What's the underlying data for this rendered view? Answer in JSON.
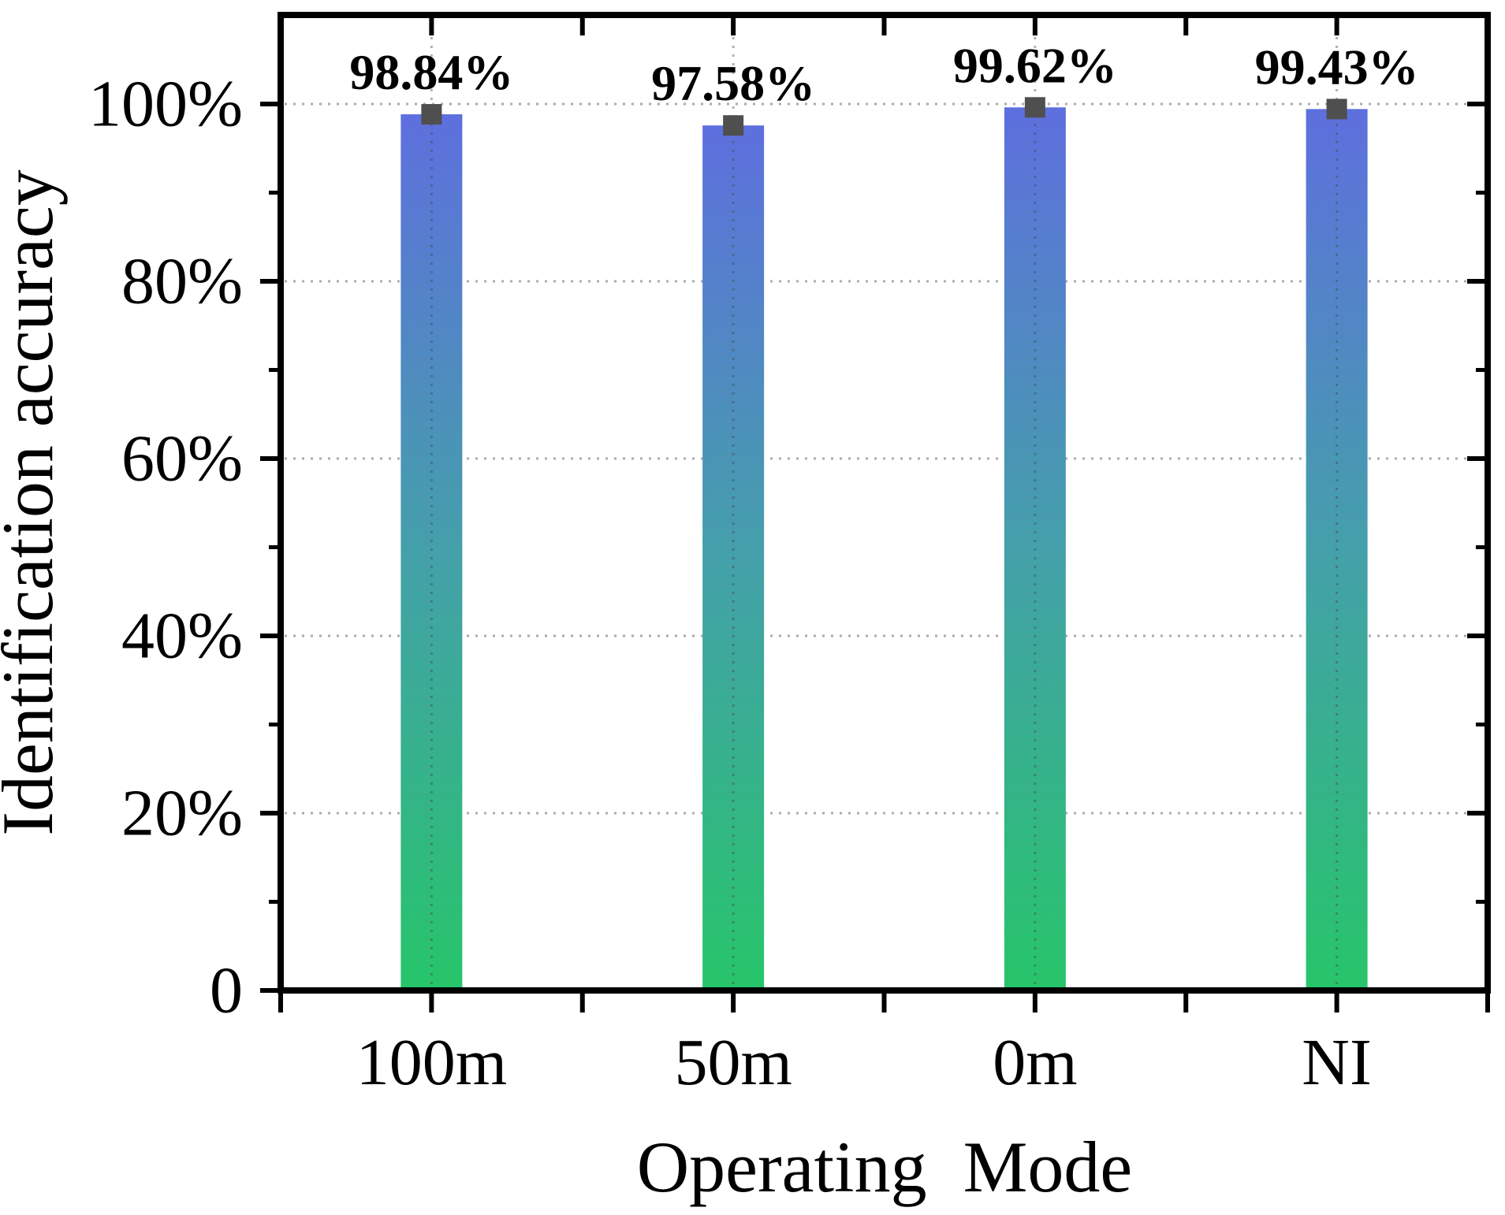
{
  "figure": {
    "background_color": "#ffffff"
  },
  "chart_data": {
    "type": "bar",
    "title": "",
    "xlabel": "Operating  Mode",
    "ylabel": "Identification accuracy",
    "categories": [
      "100m",
      "50m",
      "0m",
      "NI"
    ],
    "series": [
      {
        "name": "Identification accuracy",
        "values": [
          98.84,
          97.58,
          99.62,
          99.43
        ]
      }
    ],
    "value_labels": [
      "98.84%",
      "97.58%",
      "99.62%",
      "99.43%"
    ],
    "y_axis": {
      "ticks": [
        {
          "value": 0,
          "label": "0"
        },
        {
          "value": 20,
          "label": "20%"
        },
        {
          "value": 40,
          "label": "40%"
        },
        {
          "value": 60,
          "label": "60%"
        },
        {
          "value": 80,
          "label": "80%"
        },
        {
          "value": 100,
          "label": "100%"
        }
      ],
      "minor_tick_values": [
        10,
        30,
        50,
        70,
        90
      ],
      "range": [
        0,
        110
      ]
    },
    "grid": {
      "horizontal_percent": [
        20,
        40,
        60,
        80,
        100
      ],
      "vertical_at_category_centers": true,
      "line_style": "dotted"
    },
    "styles": {
      "bar_gradient_top": "#5e6fde",
      "bar_gradient_mid": "#44a0aa",
      "bar_gradient_bottom": "#27c56a",
      "marker_shape": "square",
      "marker_color": "#4f4f4f",
      "gridline_color": "#ababab",
      "vertical_gridline_color": "rgba(70,70,70,0.42)",
      "axis_color": "#000000",
      "text_color": "#000000"
    },
    "legend": null
  }
}
